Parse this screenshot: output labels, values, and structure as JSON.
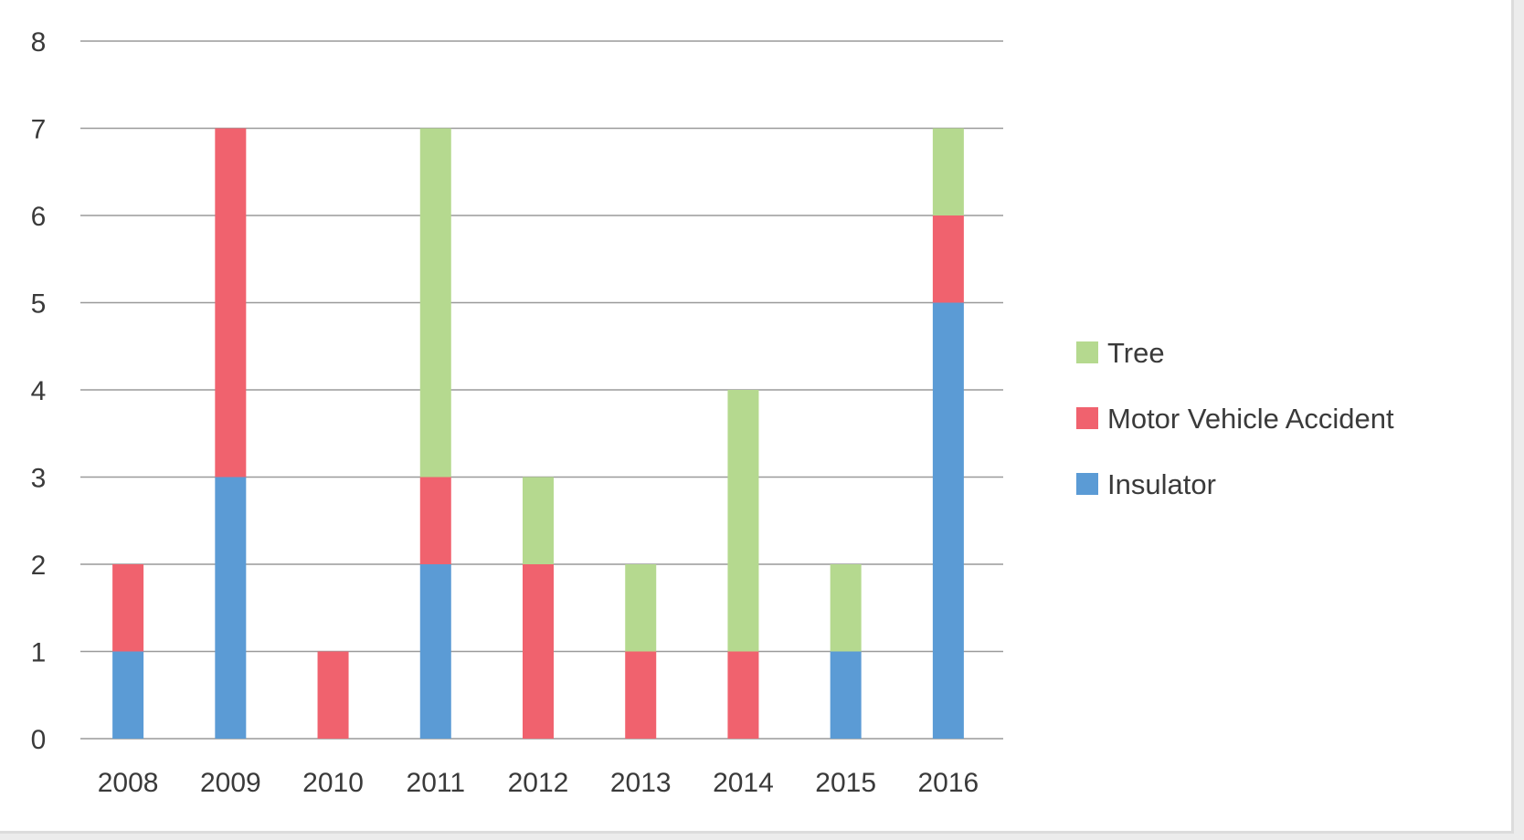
{
  "chart_data": {
    "type": "bar",
    "stacked": true,
    "categories": [
      "2008",
      "2009",
      "2010",
      "2011",
      "2012",
      "2013",
      "2014",
      "2015",
      "2016"
    ],
    "series": [
      {
        "name": "Insulator",
        "color": "#5b9bd5",
        "values": [
          1,
          3,
          0,
          2,
          0,
          0,
          0,
          1,
          5
        ]
      },
      {
        "name": "Motor Vehicle Accident",
        "color": "#f0626e",
        "values": [
          1,
          4,
          1,
          1,
          2,
          1,
          1,
          0,
          1
        ]
      },
      {
        "name": "Tree",
        "color": "#b5d98f",
        "values": [
          0,
          0,
          0,
          4,
          1,
          1,
          3,
          1,
          1
        ]
      }
    ],
    "title": "",
    "xlabel": "",
    "ylabel": "",
    "ylim": [
      0,
      8
    ],
    "yticks": [
      "0",
      "1",
      "2",
      "3",
      "4",
      "5",
      "6",
      "7",
      "8"
    ],
    "grid": true,
    "legend": {
      "position": "right",
      "order": [
        "Tree",
        "Motor Vehicle Accident",
        "Insulator"
      ]
    }
  }
}
